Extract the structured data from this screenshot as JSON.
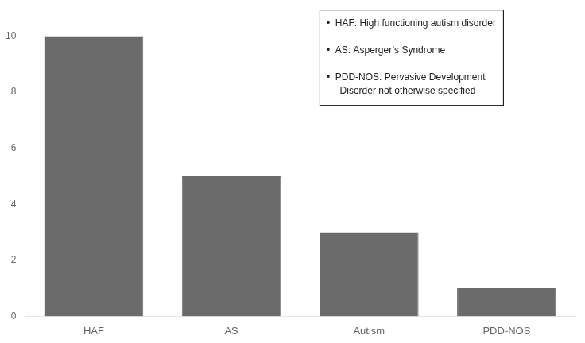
{
  "chart_data": {
    "type": "bar",
    "categories": [
      "HAF",
      "AS",
      "Autism",
      "PDD-NOS"
    ],
    "values": [
      10,
      5,
      3,
      1
    ],
    "color": "#6b6b6b",
    "ylim": [
      0,
      11
    ],
    "yticks": [
      0,
      2,
      4,
      6,
      8,
      10
    ],
    "grid": false,
    "annotations": [
      "•  HAF: High functioning autism disorder",
      "•  AS: Asperger’s Syndrome",
      "•  PDD-NOS: Pervasive Development\n     Disorder not otherwise specified"
    ]
  }
}
